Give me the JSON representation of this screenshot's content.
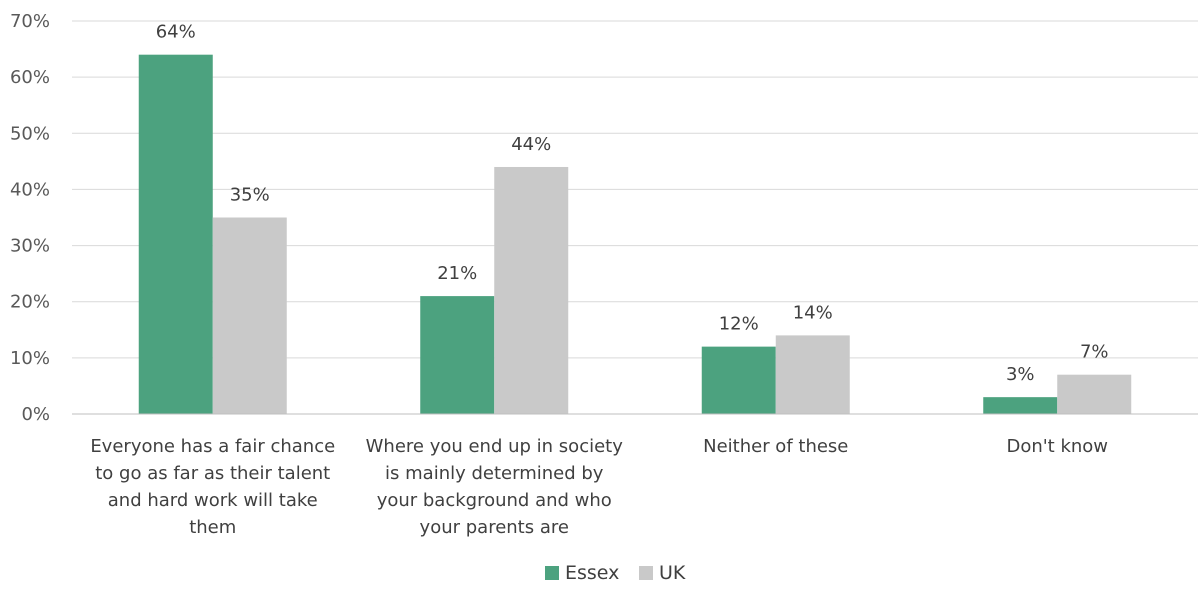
{
  "chart_data": {
    "type": "bar",
    "title": "",
    "xlabel": "",
    "ylabel": "",
    "ylim": [
      0,
      70
    ],
    "yticks": [
      0,
      10,
      20,
      30,
      40,
      50,
      60,
      70
    ],
    "ytick_suffix": "%",
    "grid": true,
    "legend_position": "bottom-center",
    "categories": [
      [
        "Everyone has a fair chance",
        "to go as far as their talent",
        "and hard work will take",
        "them"
      ],
      [
        "Where you end up in society",
        "is mainly determined by",
        "your background and who",
        "your parents are"
      ],
      [
        "Neither of these"
      ],
      [
        "Don't know"
      ]
    ],
    "series": [
      {
        "name": "Essex",
        "color": "#4ca27f",
        "values": [
          64,
          21,
          12,
          3
        ]
      },
      {
        "name": "UK",
        "color": "#c9c9c9",
        "values": [
          35,
          44,
          14,
          7
        ]
      }
    ]
  }
}
